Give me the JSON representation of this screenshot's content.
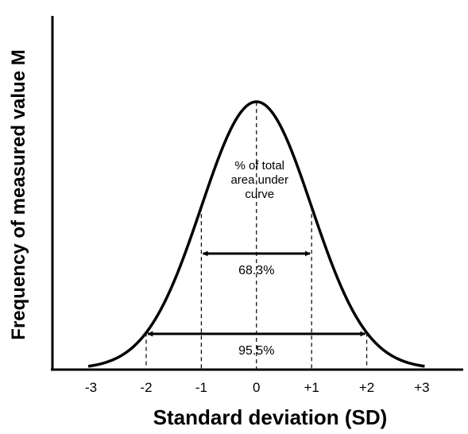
{
  "chart_data": {
    "type": "line",
    "ylabel": "Frequency of measured value M",
    "xlabel": "Standard deviation (SD)",
    "x_ticks": [
      "-3",
      "-2",
      "-1",
      "0",
      "+1",
      "+2",
      "+3"
    ],
    "xlim": [
      -3.7,
      3.75
    ],
    "curve": {
      "kind": "normal",
      "mean": 0,
      "sd": 1
    },
    "dashed_lines_at": [
      -2,
      -1,
      0,
      1,
      2
    ],
    "annotation": "% of total\narea under\ncurve",
    "ranges": [
      {
        "from": -1,
        "to": 1,
        "label": "68.3%"
      },
      {
        "from": -2,
        "to": 2,
        "label": "95.5%"
      }
    ]
  }
}
